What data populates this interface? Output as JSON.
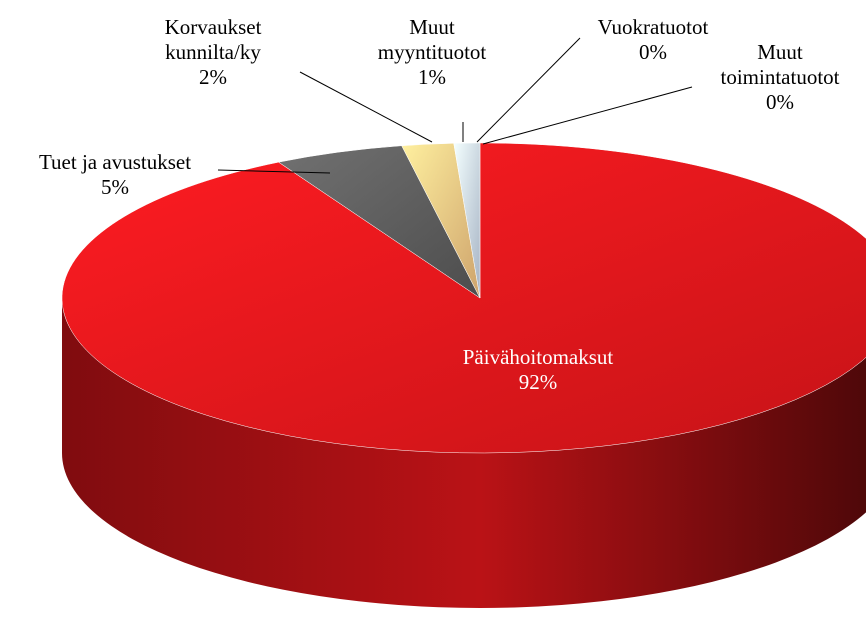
{
  "chart_data": {
    "type": "pie",
    "categories": [
      "Päivähoitomaksut",
      "Tuet ja avustukset",
      "Korvaukset kunnilta/ky",
      "Muut myyntituotot",
      "Vuokratuotot",
      "Muut toimintatuotot"
    ],
    "values": [
      92,
      5,
      2,
      1,
      0,
      0
    ],
    "value_labels": [
      "92%",
      "5%",
      "2%",
      "1%",
      "0%",
      "0%"
    ],
    "colors": [
      "#e8161b",
      "#5a5a5a",
      "#f2c07f",
      "#c3d3e6",
      "#a9bfd8",
      "#8fb0d0"
    ]
  }
}
